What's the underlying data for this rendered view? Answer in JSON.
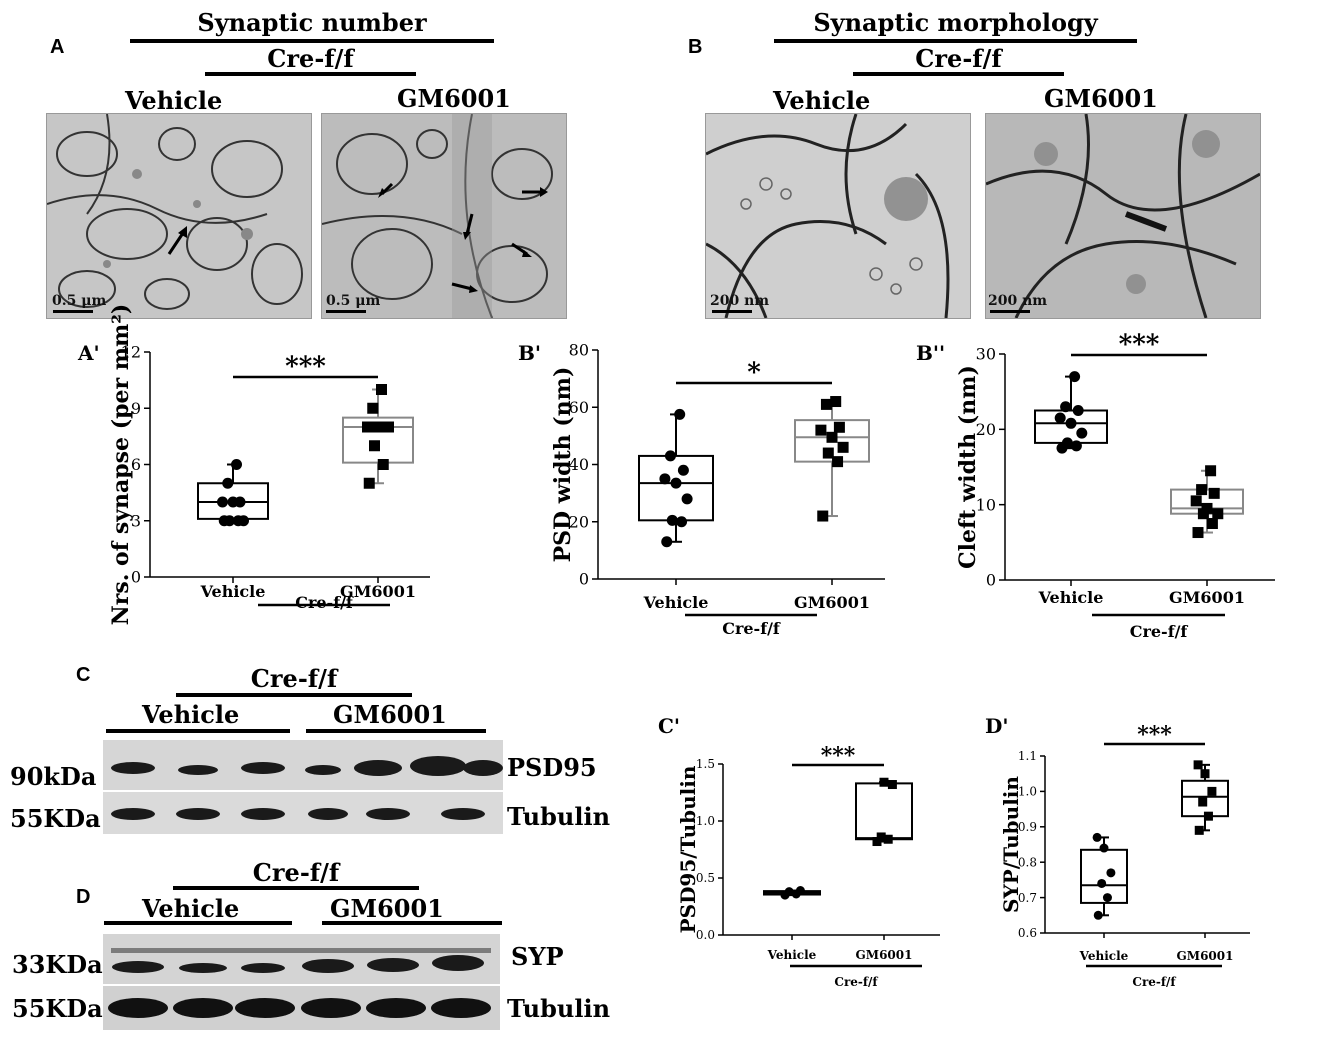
{
  "panel_a": {
    "letter": "A",
    "header": "Synaptic number",
    "genotype": "Cre-f/f",
    "conditions": [
      "Vehicle",
      "GM6001"
    ],
    "scale_bars": [
      "0.5 μm",
      "0.5 μm"
    ]
  },
  "panel_b": {
    "letter": "B",
    "header": "Synaptic morphology",
    "genotype": "Cre-f/f",
    "conditions": [
      "Vehicle",
      "GM6001"
    ],
    "scale_bars": [
      "200 nm",
      "200 nm"
    ]
  },
  "panel_c": {
    "letter": "C",
    "genotype": "Cre-f/f",
    "conditions": [
      "Vehicle",
      "GM6001"
    ],
    "weights": [
      "90kDa",
      "55KDa"
    ],
    "proteins": [
      "PSD95",
      "Tubulin"
    ]
  },
  "panel_d": {
    "letter": "D",
    "genotype": "Cre-f/f",
    "conditions": [
      "Vehicle",
      "GM6001"
    ],
    "weights": [
      "33KDa",
      "55KDa"
    ],
    "proteins": [
      "SYP",
      "Tubulin"
    ]
  },
  "chart_data": [
    {
      "id": "A'",
      "type": "box",
      "title": "",
      "ylabel": "Nrs. of synapse (per mm²)",
      "ylim": [
        0,
        12
      ],
      "yticks": [
        0,
        3,
        6,
        9,
        12
      ],
      "categories": [
        "Vehicle",
        "GM6001"
      ],
      "group_label": "Cre-f/f",
      "significance": "***",
      "series": [
        {
          "name": "Vehicle",
          "marker": "circle",
          "color": "#000000",
          "box": {
            "min": 3,
            "q1": 3.1,
            "median": 4,
            "q3": 5,
            "max": 6
          },
          "points": [
            3,
            3,
            3,
            3,
            4,
            4,
            4,
            5,
            6
          ]
        },
        {
          "name": "GM6001",
          "marker": "square",
          "color": "#888888",
          "box": {
            "min": 5,
            "q1": 6.1,
            "median": 8,
            "q3": 8.5,
            "max": 10
          },
          "points": [
            5,
            6,
            7,
            8,
            8,
            8,
            8,
            9,
            10
          ]
        }
      ]
    },
    {
      "id": "B'",
      "type": "box",
      "title": "",
      "ylabel": "PSD width (nm)",
      "ylim": [
        0,
        80
      ],
      "yticks": [
        0,
        20,
        40,
        60,
        80
      ],
      "categories": [
        "Vehicle",
        "GM6001"
      ],
      "group_label": "Cre-f/f",
      "significance": "*",
      "series": [
        {
          "name": "Vehicle",
          "marker": "circle",
          "color": "#000000",
          "box": {
            "min": 13,
            "q1": 20.5,
            "median": 33.5,
            "q3": 43,
            "max": 57.5
          },
          "points": [
            13,
            20,
            20.5,
            28,
            33.5,
            35,
            38,
            43,
            57.5
          ]
        },
        {
          "name": "GM6001",
          "marker": "square",
          "color": "#888888",
          "box": {
            "min": 22,
            "q1": 41,
            "median": 49.5,
            "q3": 55.5,
            "max": 62
          },
          "points": [
            22,
            41,
            44,
            46,
            49.5,
            52,
            53,
            61,
            62
          ]
        }
      ]
    },
    {
      "id": "B''",
      "type": "box",
      "title": "",
      "ylabel": "Cleft width (nm)",
      "ylim": [
        0,
        30
      ],
      "yticks": [
        0,
        10,
        20,
        30
      ],
      "categories": [
        "Vehicle",
        "GM6001"
      ],
      "group_label": "Cre-f/f",
      "significance": "***",
      "series": [
        {
          "name": "Vehicle",
          "marker": "circle",
          "color": "#000000",
          "box": {
            "min": 17.5,
            "q1": 18.2,
            "median": 20.8,
            "q3": 22.5,
            "max": 27
          },
          "points": [
            17.5,
            17.8,
            18.2,
            19.5,
            20.8,
            21.5,
            22.5,
            23,
            27
          ]
        },
        {
          "name": "GM6001",
          "marker": "square",
          "color": "#888888",
          "box": {
            "min": 6.3,
            "q1": 8.8,
            "median": 9.5,
            "q3": 12,
            "max": 14.5
          },
          "points": [
            6.3,
            7.5,
            8.8,
            8.8,
            9.5,
            10.5,
            11.5,
            12,
            14.5
          ]
        }
      ]
    },
    {
      "id": "C'",
      "type": "box",
      "title": "",
      "ylabel": "PSD95/Tubulin",
      "ylim": [
        0,
        1.5
      ],
      "yticks": [
        0.0,
        0.5,
        1.0,
        1.5
      ],
      "categories": [
        "Vehicle",
        "GM6001"
      ],
      "group_label": "Cre-f/f",
      "significance": "***",
      "series": [
        {
          "name": "Vehicle",
          "marker": "circle",
          "color": "#000000",
          "box": {
            "min": 0.35,
            "q1": 0.355,
            "median": 0.37,
            "q3": 0.385,
            "max": 0.39
          },
          "points": [
            0.35,
            0.36,
            0.38,
            0.39
          ]
        },
        {
          "name": "GM6001",
          "marker": "square",
          "color": "#000000",
          "box": {
            "min": 0.82,
            "q1": 0.84,
            "median": 0.85,
            "q3": 1.33,
            "max": 1.34
          },
          "points": [
            0.82,
            0.84,
            0.86,
            1.32,
            1.34
          ]
        }
      ]
    },
    {
      "id": "D'",
      "type": "box",
      "title": "",
      "ylabel": "SYP/Tubulin",
      "ylim": [
        0.6,
        1.1
      ],
      "yticks": [
        0.6,
        0.7,
        0.8,
        0.9,
        1.0,
        1.1
      ],
      "categories": [
        "Vehicle",
        "GM6001"
      ],
      "group_label": "Cre-f/f",
      "significance": "***",
      "series": [
        {
          "name": "Vehicle",
          "marker": "circle",
          "color": "#000000",
          "box": {
            "min": 0.65,
            "q1": 0.685,
            "median": 0.735,
            "q3": 0.835,
            "max": 0.87
          },
          "points": [
            0.65,
            0.7,
            0.74,
            0.77,
            0.84,
            0.87
          ]
        },
        {
          "name": "GM6001",
          "marker": "square",
          "color": "#000000",
          "box": {
            "min": 0.89,
            "q1": 0.93,
            "median": 0.985,
            "q3": 1.03,
            "max": 1.075
          },
          "points": [
            0.89,
            0.93,
            0.97,
            1.0,
            1.05,
            1.075
          ]
        }
      ]
    }
  ]
}
